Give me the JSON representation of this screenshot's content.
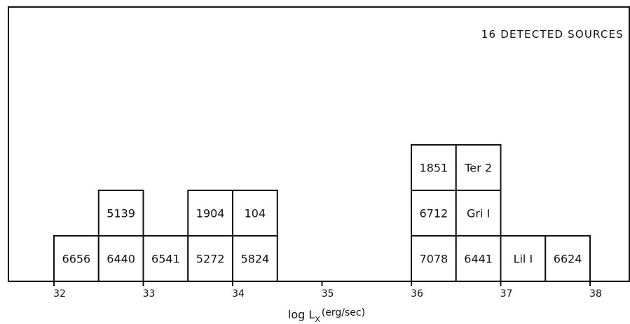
{
  "chart_data": {
    "type": "histogram",
    "annotation": "16 DETECTED SOURCES",
    "xlabel_main": "log L",
    "xlabel_sub": "X",
    "xlabel_unit": "(erg/sec)",
    "xlim": [
      32,
      38
    ],
    "bin_width": 0.5,
    "ylim": [
      0,
      3
    ],
    "xticks": [
      "32",
      "33",
      "34",
      "35",
      "36",
      "37",
      "38"
    ],
    "sources": [
      {
        "label": "6656",
        "bin_start": 32.0,
        "level": 1
      },
      {
        "label": "6440",
        "bin_start": 32.5,
        "level": 1
      },
      {
        "label": "5139",
        "bin_start": 32.5,
        "level": 2
      },
      {
        "label": "6541",
        "bin_start": 33.0,
        "level": 1
      },
      {
        "label": "5272",
        "bin_start": 33.5,
        "level": 1
      },
      {
        "label": "1904",
        "bin_start": 33.5,
        "level": 2
      },
      {
        "label": "5824",
        "bin_start": 34.0,
        "level": 1
      },
      {
        "label": "104",
        "bin_start": 34.0,
        "level": 2
      },
      {
        "label": "7078",
        "bin_start": 36.0,
        "level": 1
      },
      {
        "label": "6712",
        "bin_start": 36.0,
        "level": 2
      },
      {
        "label": "1851",
        "bin_start": 36.0,
        "level": 3
      },
      {
        "label": "6441",
        "bin_start": 36.5,
        "level": 1
      },
      {
        "label": "Gri I",
        "bin_start": 36.5,
        "level": 2
      },
      {
        "label": "Ter 2",
        "bin_start": 36.5,
        "level": 3
      },
      {
        "label": "Lil I",
        "bin_start": 37.0,
        "level": 1
      },
      {
        "label": "6624",
        "bin_start": 37.5,
        "level": 1
      }
    ]
  }
}
